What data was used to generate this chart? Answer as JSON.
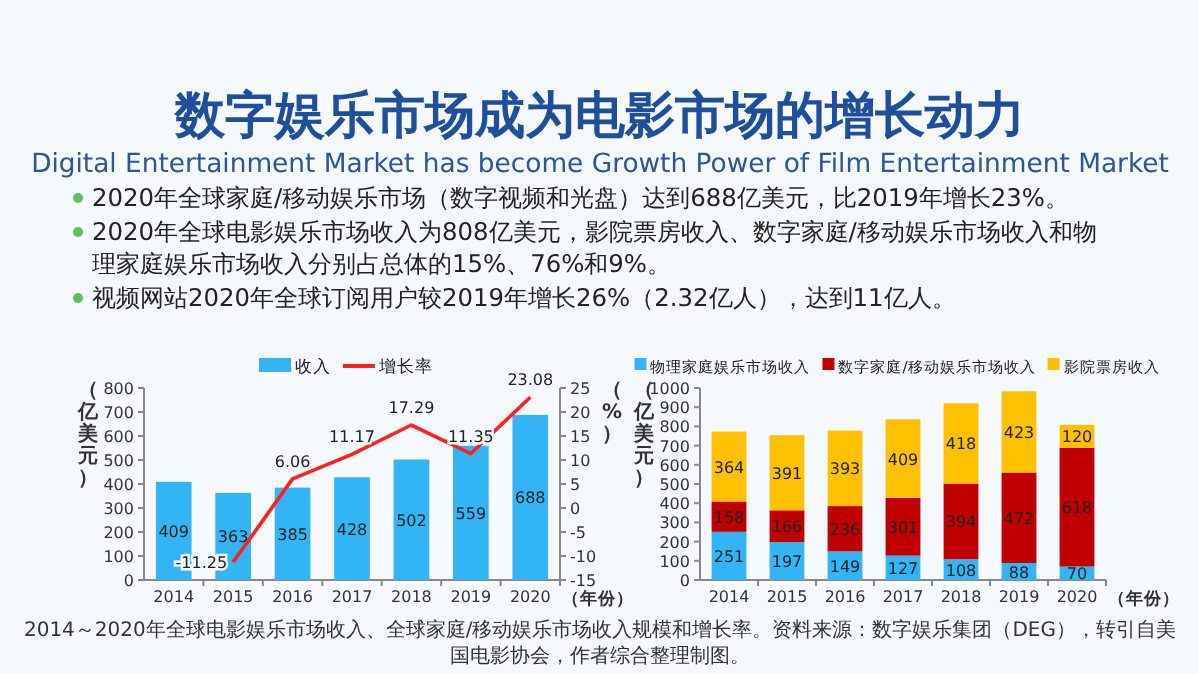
{
  "chart_data": [
    {
      "type": "bar",
      "title": "数字娱乐市场成为电影市场的增长动力",
      "subtitle": "Digital Entertainment Market has become Growth Power of Film Entertainment Market",
      "annotations": [
        "2020年全球家庭/移动娱乐市场（数字视频和光盘）达到688亿美元，比2019年增长23%。",
        "2020年全球电影娱乐市场收入为808亿美元，影院票房收入、数字家庭/移动娱乐市场收入和物理家庭娱乐市场收入分别占总体的15%、76%和9%。",
        "视频网站2020年全球订阅用户较2019年增长26%（2.32亿人），达到11亿人。",
        "2014～2020年全球电影娱乐市场收入、全球家庭/移动娱乐市场收入规模和增长率。资料来源：数字娱乐集团（DEG），转引自美国电影协会，作者综合整理制图。"
      ],
      "categories": [
        "2014",
        "2015",
        "2016",
        "2017",
        "2018",
        "2019",
        "2020"
      ],
      "series": [
        {
          "name": "收入",
          "color": "#33b5f5",
          "values": [
            409,
            363,
            385,
            428,
            502,
            559,
            688
          ]
        },
        {
          "name": "增长率",
          "type": "line",
          "axis": "y2",
          "color": "#ff2020",
          "values": [
            null,
            -11.25,
            6.06,
            11.17,
            17.29,
            11.35,
            23.08
          ]
        }
      ],
      "ylim": [
        0,
        800
      ],
      "yticks": [
        0,
        100,
        200,
        300,
        400,
        500,
        600,
        700,
        800
      ],
      "y2lim": [
        -15,
        25
      ],
      "y2ticks": [
        -15,
        -10,
        -5,
        0,
        5,
        10,
        15,
        20,
        25
      ],
      "ylabel": "（亿美元）",
      "y2label": "（%）",
      "xlabel": "（年份）",
      "data_labels": true,
      "legend": "top"
    },
    {
      "type": "bar",
      "stacked": true,
      "categories": [
        "2014",
        "2015",
        "2016",
        "2017",
        "2018",
        "2019",
        "2020"
      ],
      "series": [
        {
          "name": "物理家庭娱乐市场收入",
          "color": "#33b5f5",
          "values": [
            251,
            197,
            149,
            127,
            108,
            88,
            70
          ]
        },
        {
          "name": "数字家庭/移动娱乐市场收入",
          "color": "#c00000",
          "values": [
            158,
            166,
            236,
            301,
            394,
            472,
            618
          ]
        },
        {
          "name": "影院票房收入",
          "color": "#ffc000",
          "values": [
            364,
            391,
            393,
            409,
            418,
            423,
            120
          ]
        }
      ],
      "ylim": [
        0,
        1000
      ],
      "yticks": [
        0,
        100,
        200,
        300,
        400,
        500,
        600,
        700,
        800,
        900,
        1000
      ],
      "ylabel": "（亿美元）",
      "xlabel": "（年份）",
      "data_labels": true,
      "legend": "top"
    }
  ]
}
